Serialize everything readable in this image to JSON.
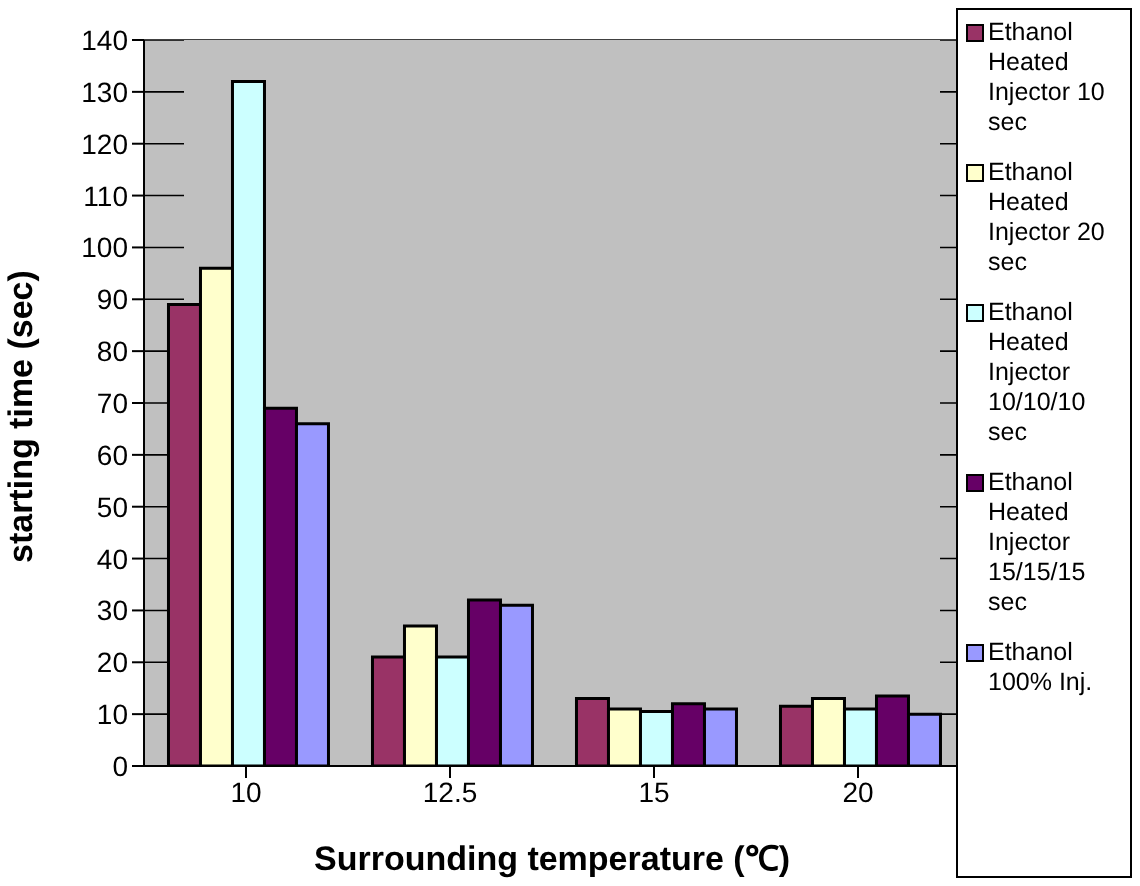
{
  "chart_data": {
    "type": "bar",
    "xlabel": "Surrounding temperature (℃)",
    "ylabel": "starting time (sec)",
    "categories": [
      "10",
      "12.5",
      "15",
      "20"
    ],
    "series": [
      {
        "name": "Ethanol Heated Injector 10 sec",
        "color": "#993366",
        "values": [
          89,
          21,
          13,
          11.5
        ]
      },
      {
        "name": "Ethanol Heated Injector 20 sec",
        "color": "#ffffcc",
        "values": [
          96,
          27,
          11,
          13
        ]
      },
      {
        "name": "Ethanol Heated Injector 10/10/10 sec",
        "color": "#ccffff",
        "values": [
          132,
          21,
          10.5,
          11
        ]
      },
      {
        "name": "Ethanol Heated Injector 15/15/15 sec",
        "color": "#660066",
        "values": [
          69,
          32,
          12,
          13.5
        ]
      },
      {
        "name": "Ethanol 100% Inj.",
        "color": "#9999ff",
        "values": [
          66,
          31,
          11,
          10
        ]
      }
    ],
    "ylim": [
      0,
      140
    ],
    "yticks": [
      0,
      10,
      20,
      30,
      40,
      50,
      60,
      70,
      80,
      90,
      100,
      110,
      120,
      130,
      140
    ],
    "grid": "y",
    "legend": "right"
  }
}
